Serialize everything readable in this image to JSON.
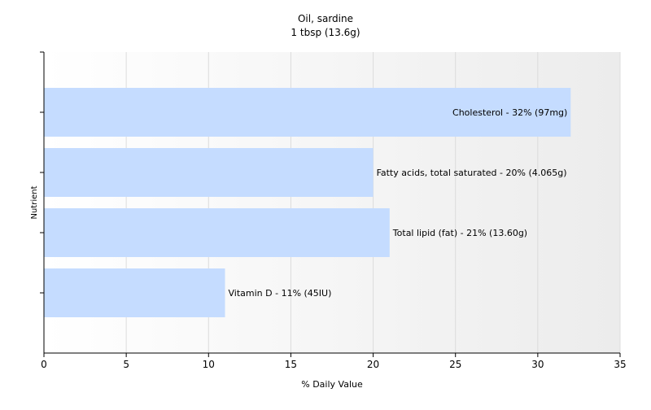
{
  "chart_data": {
    "type": "bar",
    "orientation": "horizontal",
    "title": "Oil, sardine",
    "subtitle": "1 tbsp (13.6g)",
    "xlabel": "% Daily Value",
    "ylabel": "Nutrient",
    "xlim": [
      0,
      35
    ],
    "xticks": [
      0,
      5,
      10,
      15,
      20,
      25,
      30,
      35
    ],
    "grid": true,
    "legend": "none",
    "bar_color": "#c5dcff",
    "categories": [
      "Cholesterol",
      "Fatty acids, total saturated",
      "Total lipid (fat)",
      "Vitamin D"
    ],
    "values": [
      32,
      20,
      21,
      11
    ],
    "data_labels": [
      "Cholesterol - 32% (97mg)",
      "Fatty acids, total saturated - 20% (4.065g)",
      "Total lipid (fat) - 21% (13.60g)",
      "Vitamin D - 11% (45IU)"
    ]
  }
}
